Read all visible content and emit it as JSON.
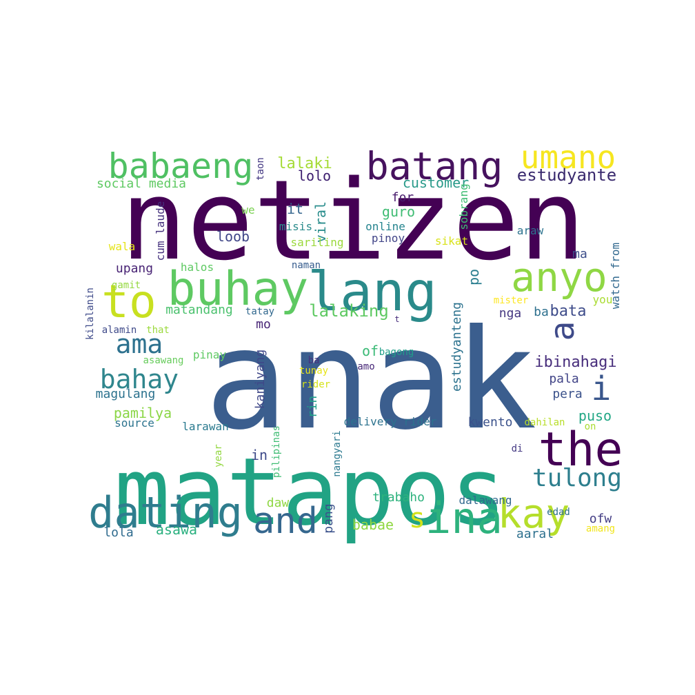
{
  "word_cloud": {
    "words": [
      {
        "text": "netizen",
        "color": "#440154"
      },
      {
        "text": "anak",
        "color": "#3b5e8e"
      },
      {
        "text": "matapos",
        "color": "#21a384"
      },
      {
        "text": "lang",
        "color": "#2a8a8a"
      },
      {
        "text": "buhay",
        "color": "#5ec962"
      },
      {
        "text": "batang",
        "color": "#46125e"
      },
      {
        "text": "babaeng",
        "color": "#4fc063"
      },
      {
        "text": "umano",
        "color": "#f6e620"
      },
      {
        "text": "anyo",
        "color": "#8fd744"
      },
      {
        "text": "to",
        "color": "#c8e020"
      },
      {
        "text": "the",
        "color": "#440154"
      },
      {
        "text": "dating",
        "color": "#2f7d8e"
      },
      {
        "text": "ina",
        "color": "#2db27d"
      },
      {
        "text": "kay",
        "color": "#b5de2b"
      },
      {
        "text": "and",
        "color": "#35678e"
      },
      {
        "text": "a",
        "color": "#3e4a89"
      },
      {
        "text": "i",
        "color": "#39568c"
      },
      {
        "text": "s",
        "color": "#d2e21b"
      },
      {
        "text": "ama",
        "color": "#2d718e"
      },
      {
        "text": "bahay",
        "color": "#2f868d"
      },
      {
        "text": "tulong",
        "color": "#2e7f8e"
      },
      {
        "text": "estudyante",
        "color": "#3a2a6e"
      },
      {
        "text": "lalaki",
        "color": "#a5db36"
      },
      {
        "text": "lolo",
        "color": "#3b1c6e"
      },
      {
        "text": "customer",
        "color": "#2a9a8a"
      },
      {
        "text": "social media",
        "color": "#5ec962"
      },
      {
        "text": "for",
        "color": "#481b6d"
      },
      {
        "text": "guro",
        "color": "#3fbc73"
      },
      {
        "text": "it",
        "color": "#35668e"
      },
      {
        "text": "we",
        "color": "#7ad151"
      },
      {
        "text": "viral",
        "color": "#2a8d8c"
      },
      {
        "text": "misis",
        "color": "#2b8c8c"
      },
      {
        "text": "online",
        "color": "#25848e"
      },
      {
        "text": "loob",
        "color": "#404688"
      },
      {
        "text": "sariling",
        "color": "#9bd93c"
      },
      {
        "text": "pinoy",
        "color": "#414487"
      },
      {
        "text": "sikat",
        "color": "#d8e219"
      },
      {
        "text": "wala",
        "color": "#e5e419"
      },
      {
        "text": "cum laude",
        "color": "#46327e"
      },
      {
        "text": "taon",
        "color": "#443983"
      },
      {
        "text": "sobrang",
        "color": "#3fbc73"
      },
      {
        "text": "araw",
        "color": "#2c728e"
      },
      {
        "text": "ma",
        "color": "#3d4e8a"
      },
      {
        "text": "watch from",
        "color": "#31688e"
      },
      {
        "text": "upang",
        "color": "#482374"
      },
      {
        "text": "halos",
        "color": "#5ec962"
      },
      {
        "text": "naman",
        "color": "#365c8d"
      },
      {
        "text": "po",
        "color": "#287d8e"
      },
      {
        "text": "gamit",
        "color": "#95d840"
      },
      {
        "text": "kilalanin",
        "color": "#3e4a89"
      },
      {
        "text": "matandang",
        "color": "#4ac16d"
      },
      {
        "text": "lalaking",
        "color": "#5ec962"
      },
      {
        "text": "mister",
        "color": "#fde725"
      },
      {
        "text": "you",
        "color": "#aadc32"
      },
      {
        "text": "bata",
        "color": "#3e4c8a"
      },
      {
        "text": "nga",
        "color": "#453781"
      },
      {
        "text": "ba",
        "color": "#2d708e"
      },
      {
        "text": "tatay",
        "color": "#31688e"
      },
      {
        "text": "t",
        "color": "#472d7b"
      },
      {
        "text": "that",
        "color": "#9bd93c"
      },
      {
        "text": "alamin",
        "color": "#3e4989"
      },
      {
        "text": "mo",
        "color": "#482576"
      },
      {
        "text": "of",
        "color": "#3aba76"
      },
      {
        "text": "estudyanteng",
        "color": "#2c728e"
      },
      {
        "text": "bagong",
        "color": "#1f9e89"
      },
      {
        "text": "pinay",
        "color": "#5ec962"
      },
      {
        "text": "asawang",
        "color": "#67cc5c"
      },
      {
        "text": "ba",
        "color": "#46327e"
      },
      {
        "text": "amo",
        "color": "#482878"
      },
      {
        "text": "ibinahagi",
        "color": "#472d7b"
      },
      {
        "text": "tunay",
        "color": "#e7e419"
      },
      {
        "text": "kaniyang",
        "color": "#3f4788"
      },
      {
        "text": "rider",
        "color": "#d5e21a"
      },
      {
        "text": "pala",
        "color": "#414487"
      },
      {
        "text": "magulang",
        "color": "#2c728e"
      },
      {
        "text": "pera",
        "color": "#3b528b"
      },
      {
        "text": "rin",
        "color": "#1fa088"
      },
      {
        "text": "pamilya",
        "color": "#8bd646"
      },
      {
        "text": "puso",
        "color": "#22a785"
      },
      {
        "text": "source",
        "color": "#2c738e"
      },
      {
        "text": "delivery rider",
        "color": "#2c728e"
      },
      {
        "text": "kwento",
        "color": "#3b528b"
      },
      {
        "text": "dahilan",
        "color": "#b8de29"
      },
      {
        "text": "on",
        "color": "#aadc32"
      },
      {
        "text": "larawan",
        "color": "#29798e"
      },
      {
        "text": "pilipinas",
        "color": "#3fbc73"
      },
      {
        "text": "nangyari",
        "color": "#2a788e"
      },
      {
        "text": "year",
        "color": "#93d741"
      },
      {
        "text": "in",
        "color": "#3e4a89"
      },
      {
        "text": "di",
        "color": "#443983"
      },
      {
        "text": "pang",
        "color": "#3b528b"
      },
      {
        "text": "daw",
        "color": "#8fd744"
      },
      {
        "text": "trabaho",
        "color": "#2db27d"
      },
      {
        "text": "dalawang",
        "color": "#31688e"
      },
      {
        "text": "edad",
        "color": "#2e6f8e"
      },
      {
        "text": "ofw",
        "color": "#433d84"
      },
      {
        "text": "babae",
        "color": "#90d743"
      },
      {
        "text": "lola",
        "color": "#2f6b8e"
      },
      {
        "text": "asawa",
        "color": "#2ab07f"
      },
      {
        "text": "aaral",
        "color": "#2d708e"
      },
      {
        "text": "amang",
        "color": "#f1e51d"
      }
    ]
  }
}
